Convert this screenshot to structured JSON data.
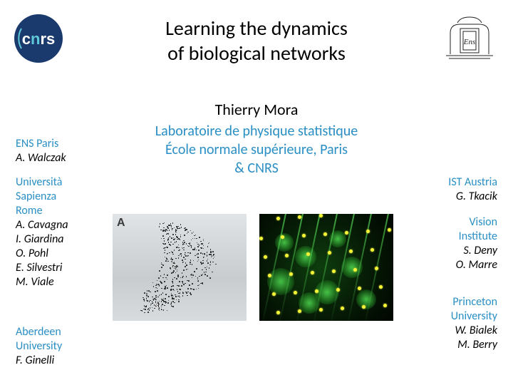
{
  "title_line1": "Learning the dynamics",
  "title_line2": "of biological networks",
  "author": "Thierry Mora",
  "affiliation_line1": "Laboratoire de physique statistique",
  "affiliation_line2": "École normale supérieure, Paris",
  "affiliation_line3": "& CNRS",
  "figure_label": "A",
  "collaborators": {
    "left1": {
      "inst": "ENS Paris",
      "people": [
        "A. Walczak"
      ]
    },
    "left2": {
      "inst_lines": [
        "Università",
        "Sapienza",
        "Rome"
      ],
      "people": [
        "A. Cavagna",
        "I. Giardina",
        "O. Pohl",
        "E. Silvestri",
        "M. Viale"
      ]
    },
    "left3": {
      "inst_lines": [
        "Aberdeen",
        "University"
      ],
      "people": [
        "F. Ginelli"
      ]
    },
    "right1": {
      "inst": "IST Austria",
      "people": [
        "G. Tkacik"
      ]
    },
    "right2": {
      "inst_lines": [
        "Vision",
        "Institute"
      ],
      "people": [
        "S. Deny",
        "O. Marre"
      ]
    },
    "right3": {
      "inst_lines": [
        "Princeton",
        "University"
      ],
      "people": [
        "W. Bialek",
        "M. Berry"
      ]
    }
  },
  "colors": {
    "accent": "#2a8fc4",
    "cnrs_blue": "#1a3a6e",
    "cnrs_cyan": "#5fc8d8"
  }
}
